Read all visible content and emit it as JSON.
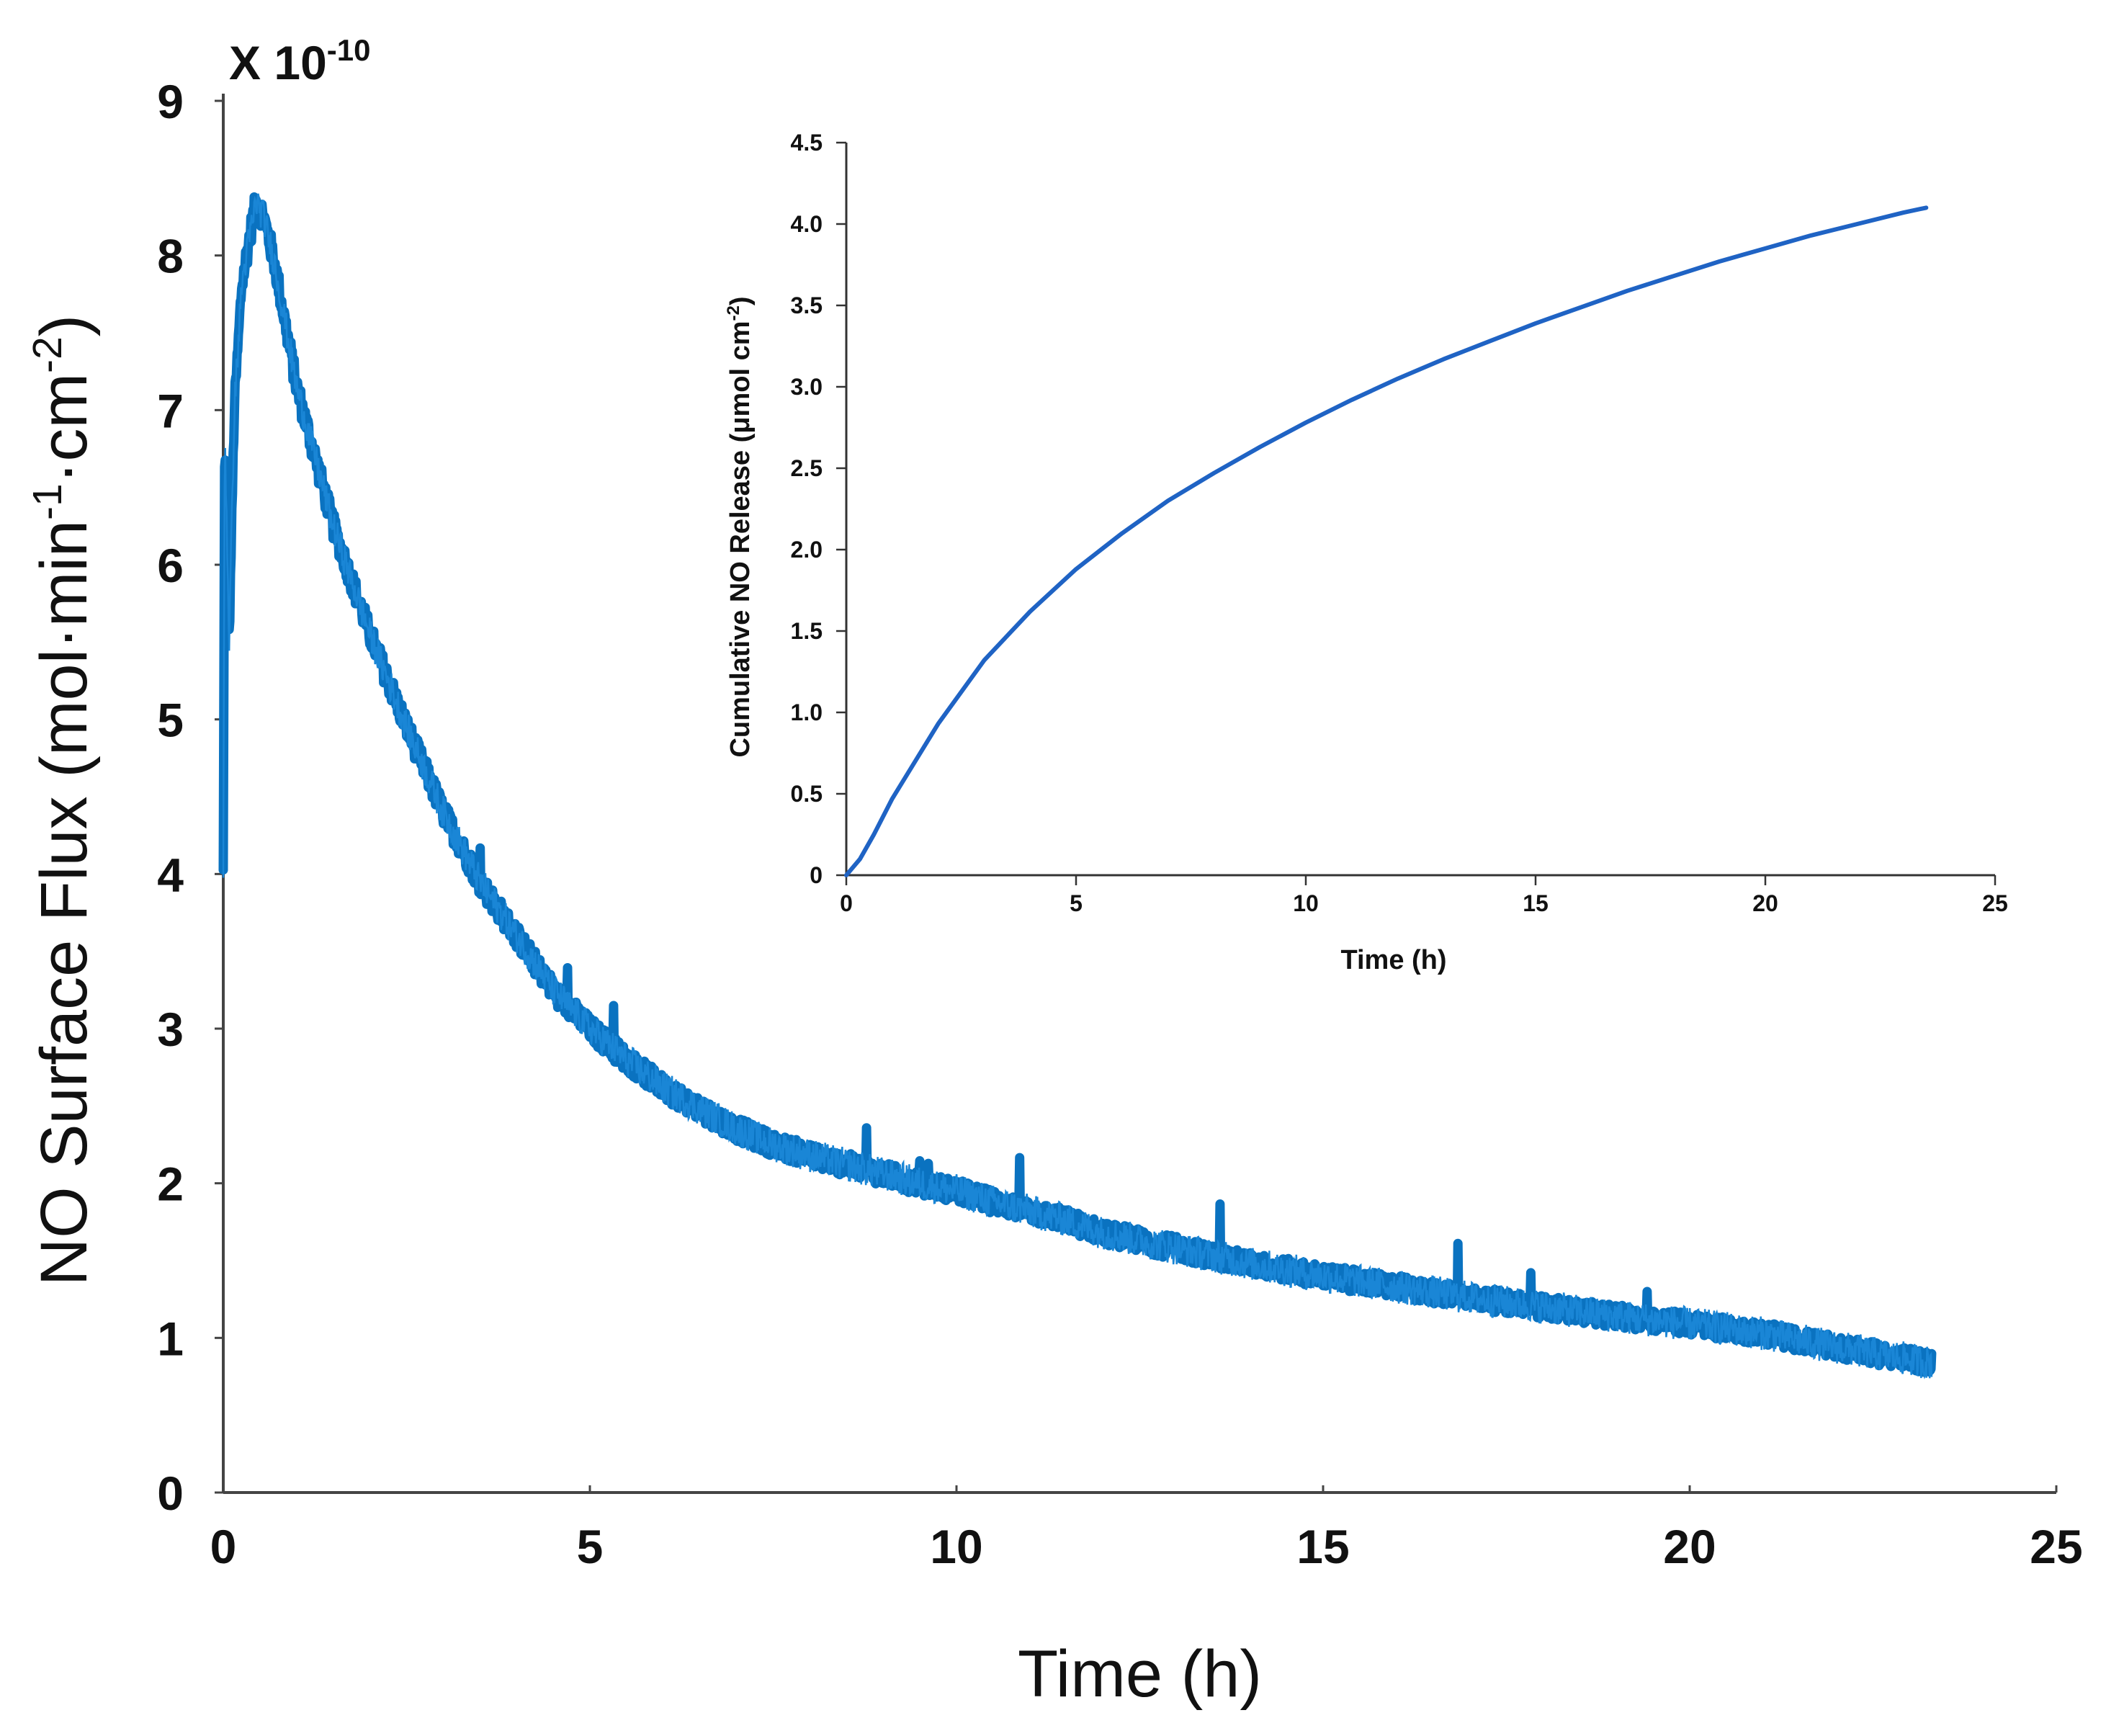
{
  "chart_data": [
    {
      "id": "main",
      "type": "line",
      "title": "",
      "xlabel": "Time (h)",
      "ylabel": "NO Surface Flux (mol·min⁻¹·cm⁻²)",
      "y_multiplier": {
        "base": "X 10",
        "exponent": "-10"
      },
      "xlim": [
        0,
        25
      ],
      "ylim": [
        0,
        9
      ],
      "xticks": [
        0,
        5,
        10,
        15,
        20,
        25
      ],
      "xtick_labels": [
        "0",
        "5",
        "10",
        "15",
        "20",
        "25"
      ],
      "yticks": [
        0,
        1,
        2,
        3,
        4,
        5,
        6,
        7,
        8,
        9
      ],
      "ytick_labels": [
        "0",
        "1",
        "2",
        "3",
        "4",
        "5",
        "6",
        "7",
        "8",
        "9"
      ],
      "grid": false,
      "series": [
        {
          "name": "NO surface flux",
          "color": "#0a72c0",
          "noisy": true,
          "x": [
            0,
            0.02,
            0.08,
            0.15,
            0.25,
            0.35,
            0.45,
            0.55,
            0.7,
            0.85,
            1.0,
            1.25,
            1.5,
            2.0,
            2.5,
            3.0,
            3.5,
            4.0,
            4.5,
            5.0,
            5.5,
            6.0,
            6.5,
            7.0,
            7.5,
            8.0,
            8.5,
            9.0,
            9.5,
            10.0,
            10.5,
            11.0,
            11.5,
            12.0,
            13.0,
            14.0,
            15.0,
            16.0,
            17.0,
            18.0,
            19.0,
            20.0,
            21.0,
            22.0,
            22.5,
            23.0,
            23.3
          ],
          "y": [
            4.0,
            6.9,
            5.5,
            7.0,
            7.8,
            8.1,
            8.35,
            8.25,
            7.95,
            7.55,
            7.15,
            6.7,
            6.25,
            5.55,
            4.95,
            4.4,
            3.95,
            3.6,
            3.25,
            3.0,
            2.8,
            2.62,
            2.48,
            2.35,
            2.25,
            2.18,
            2.12,
            2.06,
            2.0,
            1.95,
            1.88,
            1.82,
            1.76,
            1.68,
            1.58,
            1.48,
            1.4,
            1.33,
            1.26,
            1.2,
            1.14,
            1.09,
            1.03,
            0.94,
            0.9,
            0.86,
            0.84
          ]
        }
      ]
    },
    {
      "id": "inset",
      "type": "line",
      "title": "",
      "xlabel": "Time (h)",
      "ylabel": "Cumulative NO Release (μmol cm⁻²)",
      "xlim": [
        0,
        25
      ],
      "ylim": [
        0,
        4.5
      ],
      "xticks": [
        0,
        5,
        10,
        15,
        20,
        25
      ],
      "xtick_labels": [
        "0",
        "5",
        "10",
        "15",
        "20",
        "25"
      ],
      "yticks": [
        0,
        0.5,
        1.0,
        1.5,
        2.0,
        2.5,
        3.0,
        3.5,
        4.0,
        4.5
      ],
      "ytick_labels": [
        "0",
        "0.5",
        "1.0",
        "1.5",
        "2.0",
        "2.5",
        "3.0",
        "3.5",
        "4.0",
        "4.5"
      ],
      "grid": false,
      "series": [
        {
          "name": "Cumulative NO release",
          "color": "#1f63c4",
          "noisy": false,
          "x": [
            0,
            0.3,
            0.6,
            1,
            2,
            3,
            4,
            5,
            6,
            7,
            8,
            9,
            10,
            11,
            12,
            13,
            14,
            15,
            16,
            17,
            18,
            19,
            20,
            21,
            22,
            23,
            23.5
          ],
          "y": [
            0,
            0.1,
            0.25,
            0.47,
            0.93,
            1.32,
            1.62,
            1.88,
            2.1,
            2.3,
            2.47,
            2.63,
            2.78,
            2.92,
            3.05,
            3.17,
            3.28,
            3.39,
            3.49,
            3.59,
            3.68,
            3.77,
            3.85,
            3.93,
            4.0,
            4.07,
            4.1
          ]
        }
      ]
    }
  ]
}
